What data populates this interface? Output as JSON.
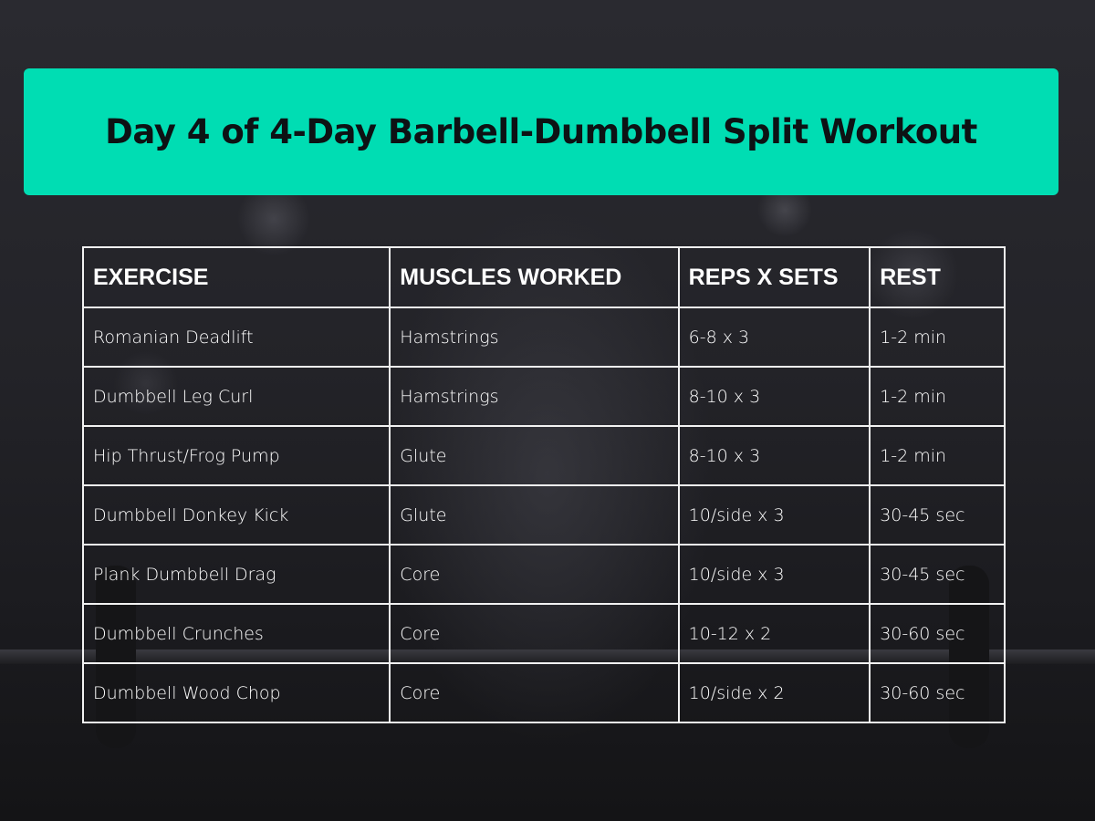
{
  "title": "Day 4 of 4-Day Barbell-Dumbbell Split Workout",
  "colors": {
    "banner": "#00DDB3",
    "title_text": "#0d1214",
    "table_text": "#ffffff"
  },
  "table": {
    "headers": [
      "EXERCISE",
      "MUSCLES WORKED",
      "REPS X SETS",
      "REST"
    ],
    "rows": [
      [
        "Romanian Deadlift",
        "Hamstrings",
        "6-8 x 3",
        "1-2 min"
      ],
      [
        "Dumbbell Leg Curl",
        "Hamstrings",
        "8-10 x 3",
        "1-2 min"
      ],
      [
        "Hip Thrust/Frog Pump",
        "Glute",
        "8-10 x 3",
        "1-2 min"
      ],
      [
        "Dumbbell Donkey Kick",
        "Glute",
        "10/side x 3",
        "30-45 sec"
      ],
      [
        "Plank Dumbbell Drag",
        "Core",
        "10/side x 3",
        "30-45 sec"
      ],
      [
        "Dumbbell Crunches",
        "Core",
        "10-12 x 2",
        "30-60 sec"
      ],
      [
        "Dumbbell Wood Chop",
        "Core",
        "10/side x 2",
        "30-60 sec"
      ]
    ]
  }
}
